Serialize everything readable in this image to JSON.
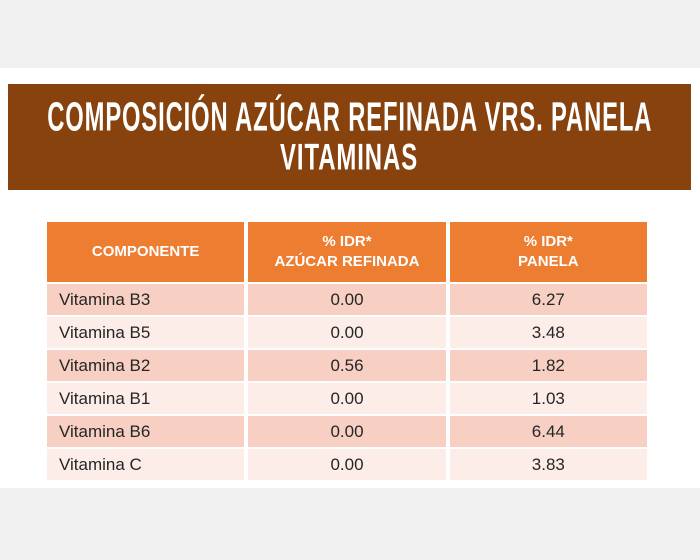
{
  "banner": {
    "title": "COMPOSICIÓN AZÚCAR REFINADA VRS. PANELA",
    "subtitle": "VITAMINAS"
  },
  "table": {
    "columns": [
      {
        "line1": "COMPONENTE",
        "line2": ""
      },
      {
        "line1": "% IDR*",
        "line2": "AZÚCAR REFINADA"
      },
      {
        "line1": "% IDR*",
        "line2": "PANELA"
      }
    ],
    "rows": [
      {
        "componente": "Vitamina B3",
        "azucar": "0.00",
        "panela": "6.27"
      },
      {
        "componente": "Vitamina B5",
        "azucar": "0.00",
        "panela": "3.48"
      },
      {
        "componente": "Vitamina B2",
        "azucar": "0.56",
        "panela": "1.82"
      },
      {
        "componente": "Vitamina B1",
        "azucar": "0.00",
        "panela": "1.03"
      },
      {
        "componente": "Vitamina B6",
        "azucar": "0.00",
        "panela": "6.44"
      },
      {
        "componente": "Vitamina C",
        "azucar": "0.00",
        "panela": "3.83"
      }
    ]
  },
  "colors": {
    "banner_brown": "#87420e",
    "header_orange": "#ed7d31",
    "row_dark_pink": "#f7cfc3",
    "row_light_pink": "#fcede8",
    "background_gray": "#f0f0f0",
    "text_dark": "#262626",
    "text_white": "#ffffff"
  },
  "chart_data": {
    "type": "table",
    "title": "COMPOSICIÓN AZÚCAR REFINADA VRS. PANELA — VITAMINAS",
    "columns": [
      "COMPONENTE",
      "% IDR* AZÚCAR REFINADA",
      "% IDR* PANELA"
    ],
    "rows": [
      [
        "Vitamina B3",
        0.0,
        6.27
      ],
      [
        "Vitamina B5",
        0.0,
        3.48
      ],
      [
        "Vitamina B2",
        0.56,
        1.82
      ],
      [
        "Vitamina B1",
        0.0,
        1.03
      ],
      [
        "Vitamina B6",
        0.0,
        6.44
      ],
      [
        "Vitamina C",
        0.0,
        3.83
      ]
    ]
  }
}
